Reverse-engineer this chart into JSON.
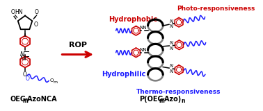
{
  "background_color": "#ffffff",
  "red": "#cc0000",
  "blue": "#1a1aff",
  "black": "#000000",
  "figsize": [
    3.78,
    1.6
  ],
  "dpi": 100,
  "label_hydrophobic": "Hydrophobic",
  "label_hydrophilic": "Hydrophilic",
  "label_photo": "Photo-responsiveness",
  "label_thermo": "Thermo-responsiveness",
  "label_oegnca": "OEG",
  "label_oegnca_m": "m",
  "label_oegnca_rest": "-AzoNCA",
  "label_polymer_pre": "P(OEG",
  "label_polymer_m": "m",
  "label_polymer_post": "-Azo)",
  "label_polymer_n": "n",
  "label_rop": "ROP"
}
